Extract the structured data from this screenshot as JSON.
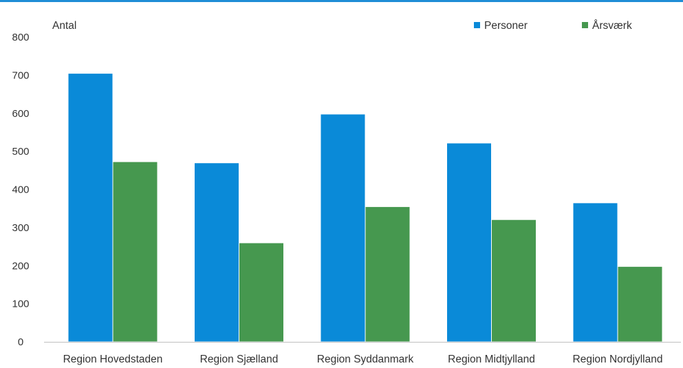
{
  "chart_data": {
    "type": "bar",
    "title": "",
    "xlabel": "",
    "ylabel": "Antal",
    "ylim": [
      0,
      800
    ],
    "yticks": [
      0,
      100,
      200,
      300,
      400,
      500,
      600,
      700,
      800
    ],
    "grid": false,
    "legend_position": "top-right",
    "categories": [
      "Region Hovedstaden",
      "Region Sjælland",
      "Region Syddanmark",
      "Region Midtjylland",
      "Region Nordjylland"
    ],
    "series": [
      {
        "name": "Personer",
        "color": "#0a8ad8",
        "values": [
          705,
          470,
          598,
          522,
          365
        ]
      },
      {
        "name": "Årsværk",
        "color": "#46984f",
        "values": [
          473,
          260,
          355,
          321,
          198
        ]
      }
    ]
  }
}
